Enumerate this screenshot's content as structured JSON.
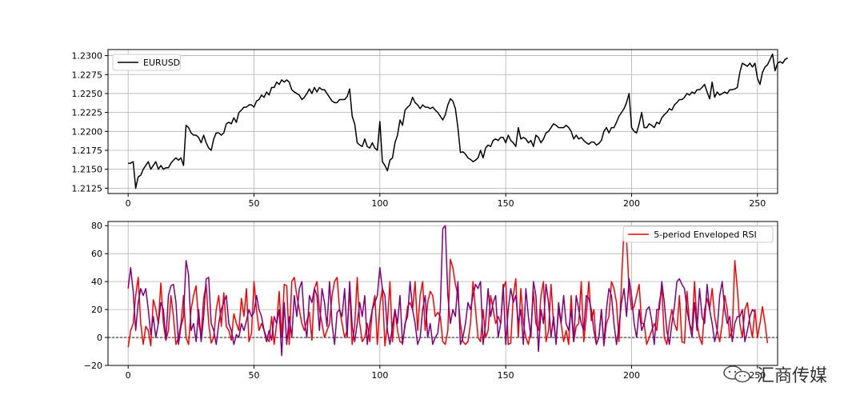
{
  "chart_data": [
    {
      "type": "line",
      "series": [
        {
          "name": "EURUSD",
          "color": "#000000",
          "values": [
            1.2158,
            1.2158,
            1.216,
            1.2125,
            1.214,
            1.2142,
            1.215,
            1.2155,
            1.216,
            1.215,
            1.2155,
            1.216,
            1.215,
            1.2155,
            1.215,
            1.2152,
            1.2152,
            1.2158,
            1.2162,
            1.2165,
            1.2162,
            1.2165,
            1.2155,
            1.2208,
            1.2205,
            1.2198,
            1.2195,
            1.2195,
            1.2192,
            1.2185,
            1.2195,
            1.2185,
            1.2178,
            1.2175,
            1.219,
            1.2198,
            1.2198,
            1.2195,
            1.2198,
            1.221,
            1.2212,
            1.221,
            1.2218,
            1.2212,
            1.2225,
            1.2228,
            1.2232,
            1.2232,
            1.2235,
            1.2235,
            1.2232,
            1.224,
            1.2242,
            1.2248,
            1.2245,
            1.2252,
            1.2248,
            1.2258,
            1.2258,
            1.2265,
            1.2262,
            1.2268,
            1.2265,
            1.2268,
            1.2265,
            1.2255,
            1.2252,
            1.225,
            1.2248,
            1.2242,
            1.2245,
            1.225,
            1.2256,
            1.225,
            1.2258,
            1.2252,
            1.2258,
            1.2255,
            1.2255,
            1.225,
            1.2245,
            1.224,
            1.2238,
            1.2238,
            1.2242,
            1.2242,
            1.2242,
            1.2246,
            1.2256,
            1.222,
            1.221,
            1.2185,
            1.2182,
            1.218,
            1.219,
            1.218,
            1.2178,
            1.2185,
            1.2178,
            1.2175,
            1.2213,
            1.216,
            1.2155,
            1.2148,
            1.2162,
            1.2165,
            1.2185,
            1.2195,
            1.2215,
            1.2208,
            1.2228,
            1.2232,
            1.2235,
            1.2245,
            1.2238,
            1.2235,
            1.223,
            1.2235,
            1.2232,
            1.2232,
            1.223,
            1.2232,
            1.2228,
            1.2225,
            1.222,
            1.2215,
            1.2222,
            1.2235,
            1.2243,
            1.224,
            1.223,
            1.2205,
            1.2172,
            1.2173,
            1.217,
            1.2165,
            1.2163,
            1.216,
            1.2162,
            1.2165,
            1.2175,
            1.2165,
            1.2178,
            1.2182,
            1.218,
            1.2188,
            1.219,
            1.2188,
            1.2192,
            1.2192,
            1.2185,
            1.2195,
            1.2188,
            1.2185,
            1.218,
            1.2205,
            1.219,
            1.2192,
            1.219,
            1.2185,
            1.2188,
            1.218,
            1.2195,
            1.2192,
            1.2185,
            1.219,
            1.2198,
            1.22,
            1.2205,
            1.221,
            1.2208,
            1.2205,
            1.2205,
            1.2205,
            1.2208,
            1.2205,
            1.22,
            1.219,
            1.2195,
            1.219,
            1.2192,
            1.2188,
            1.2185,
            1.2183,
            1.2186,
            1.2186,
            1.2182,
            1.2184,
            1.2188,
            1.22,
            1.2205,
            1.2198,
            1.2205,
            1.2205,
            1.2212,
            1.222,
            1.2225,
            1.223,
            1.2238,
            1.225,
            1.2205,
            1.22,
            1.2198,
            1.221,
            1.2225,
            1.2205,
            1.2205,
            1.221,
            1.2208,
            1.2205,
            1.2212,
            1.221,
            1.2218,
            1.2222,
            1.2225,
            1.223,
            1.2228,
            1.2235,
            1.2238,
            1.2242,
            1.2242,
            1.2245,
            1.225,
            1.2248,
            1.2252,
            1.225,
            1.2255,
            1.2255,
            1.2258,
            1.2262,
            1.2252,
            1.2243,
            1.2265,
            1.2245,
            1.2252,
            1.2248,
            1.225,
            1.2252,
            1.225,
            1.2255,
            1.2255,
            1.2256,
            1.2258,
            1.2278,
            1.229,
            1.2288,
            1.2286,
            1.229,
            1.2285,
            1.229,
            1.227,
            1.2262,
            1.2278,
            1.2285,
            1.2288,
            1.2295,
            1.2302,
            1.228,
            1.229,
            1.2292,
            1.229,
            1.2295,
            1.2297
          ]
        }
      ],
      "xlim": [
        -8,
        258
      ],
      "ylim": [
        1.2118,
        1.2308
      ],
      "xticks": [
        0,
        50,
        100,
        150,
        200,
        250
      ],
      "yticks": [
        "1.2125",
        "1.2150",
        "1.2175",
        "1.2200",
        "1.2225",
        "1.2250",
        "1.2275",
        "1.2300"
      ],
      "xlabel": "",
      "ylabel": "",
      "grid": true,
      "legend": "top-left"
    },
    {
      "type": "line",
      "series": [
        {
          "name": "5-period Enveloped RSI",
          "color": "#ff0000",
          "values": [
            -7,
            5,
            10,
            30,
            43,
            10,
            -5,
            8,
            5,
            -6,
            27,
            20,
            10,
            39,
            10,
            -2,
            5,
            30,
            15,
            -5,
            0,
            10,
            30,
            0,
            -5,
            20,
            30,
            37,
            10,
            2,
            28,
            38,
            10,
            -4,
            0,
            20,
            30,
            8,
            32,
            8,
            5,
            -2,
            17,
            10,
            5,
            28,
            15,
            35,
            -3,
            3,
            40,
            20,
            5,
            10,
            5,
            0,
            -3,
            15,
            -5,
            10,
            33,
            0,
            38,
            37,
            -5,
            40,
            43,
            30,
            20,
            10,
            5,
            12,
            18,
            -2,
            35,
            40,
            20,
            10,
            0,
            5,
            10,
            30,
            40,
            43,
            20,
            10,
            0,
            5,
            35,
            -5,
            8,
            43,
            10,
            -3,
            0,
            10,
            -3,
            20,
            30,
            -5,
            23,
            35,
            -6,
            10,
            40,
            -3,
            20,
            5,
            -3,
            -4,
            8,
            22,
            25,
            20,
            40,
            5,
            30,
            40,
            5,
            25,
            33,
            30,
            15,
            18,
            15,
            -3,
            -5,
            5,
            56,
            50,
            38,
            30,
            10,
            -3,
            -5,
            -3,
            10,
            40,
            20,
            0,
            -3,
            20,
            0,
            5,
            30,
            20,
            10,
            15,
            10,
            35,
            40,
            -5,
            -4,
            30,
            42,
            0,
            35,
            10,
            0,
            -5,
            5,
            33,
            10,
            5,
            30,
            40,
            -3,
            5,
            38,
            10,
            -3,
            20,
            10,
            -3,
            5,
            -5,
            30,
            -3,
            8,
            10,
            40,
            -3,
            15,
            40,
            12,
            20,
            -5,
            0,
            20,
            -6,
            10,
            15,
            40,
            35,
            25,
            -3,
            40,
            78,
            70,
            35,
            20,
            22,
            30,
            38,
            10,
            10,
            -5,
            0,
            5,
            10,
            5,
            25,
            35,
            0,
            -5,
            10,
            20,
            10,
            5,
            30,
            -3,
            -4,
            33,
            10,
            5,
            40,
            10,
            0,
            -5,
            20,
            28,
            20,
            35,
            15,
            5,
            -3,
            10,
            30,
            20,
            0,
            5,
            55,
            35,
            10,
            0,
            20,
            25,
            10,
            0,
            20,
            0,
            10,
            22,
            10,
            -4
          ]
        },
        {
          "name": "",
          "color": "#800080",
          "values": [
            35,
            50,
            33,
            5,
            25,
            35,
            30,
            35,
            20,
            2,
            15,
            0,
            10,
            25,
            20,
            -2,
            30,
            37,
            38,
            25,
            -5,
            8,
            15,
            55,
            45,
            5,
            10,
            -3,
            20,
            -3,
            15,
            42,
            43,
            10,
            5,
            -5,
            10,
            20,
            25,
            30,
            10,
            5,
            -5,
            2,
            0,
            10,
            5,
            12,
            20,
            15,
            18,
            30,
            20,
            15,
            5,
            -3,
            5,
            -2,
            15,
            10,
            20,
            -13,
            25,
            -5,
            15,
            0,
            30,
            15,
            35,
            40,
            12,
            0,
            30,
            25,
            35,
            30,
            5,
            35,
            25,
            8,
            40,
            10,
            -5,
            18,
            20,
            15,
            35,
            0,
            40,
            8,
            -3,
            10,
            25,
            15,
            30,
            -5,
            10,
            20,
            25,
            30,
            50,
            35,
            30,
            5,
            -5,
            8,
            20,
            10,
            30,
            -5,
            10,
            15,
            40,
            20,
            10,
            -5,
            0,
            20,
            30,
            0,
            10,
            -5,
            0,
            3,
            20,
            78,
            80,
            30,
            10,
            20,
            15,
            40,
            -5,
            0,
            10,
            25,
            20,
            30,
            38,
            35,
            40,
            -5,
            10,
            35,
            15,
            25,
            30,
            0,
            10,
            38,
            -5,
            20,
            35,
            25,
            30,
            10,
            20,
            -5,
            35,
            15,
            0,
            40,
            30,
            -10,
            20,
            10,
            38,
            25,
            0,
            15,
            -5,
            25,
            10,
            30,
            10,
            5,
            20,
            -3,
            30,
            20,
            10,
            5,
            30,
            28,
            20,
            5,
            -5,
            0,
            20,
            -5,
            20,
            35,
            30,
            10,
            -5,
            8,
            25,
            35,
            15,
            42,
            30,
            10,
            0,
            20,
            5,
            10,
            20,
            22,
            12,
            -5,
            20,
            20,
            40,
            25,
            5,
            -5,
            10,
            22,
            40,
            42,
            38,
            35,
            20,
            10,
            0,
            25,
            5,
            35,
            15,
            10,
            38,
            20,
            10,
            -3,
            5,
            30,
            40,
            20,
            10,
            15,
            -3,
            10,
            15,
            15,
            20,
            -3,
            5,
            15,
            20,
            18
          ]
        }
      ],
      "xlim": [
        -8,
        258
      ],
      "ylim": [
        -20,
        83
      ],
      "xticks": [
        0,
        50,
        100,
        150,
        200,
        250
      ],
      "yticks": [
        "−20",
        "0",
        "20",
        "40",
        "60",
        "80"
      ],
      "zero_line": true,
      "xlabel": "",
      "ylabel": "",
      "grid": true,
      "legend": "top-right"
    }
  ],
  "watermark": {
    "text": "汇商传媒",
    "icon": "wechat-logo-icon"
  }
}
